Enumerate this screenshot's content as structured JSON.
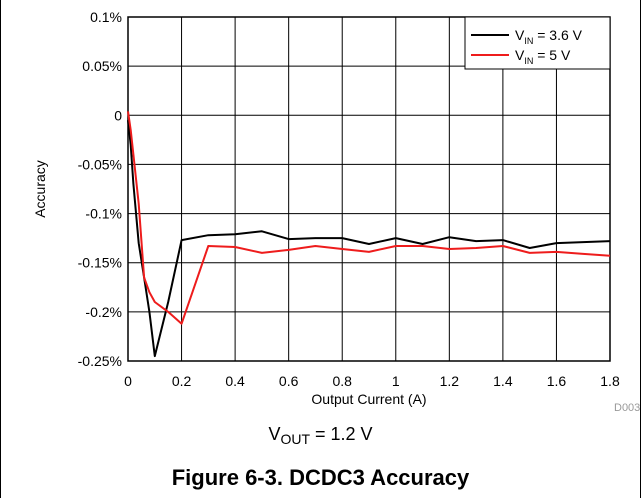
{
  "chart_data": {
    "type": "line",
    "title": "",
    "xlabel": "Output Current (A)",
    "ylabel": "Accuracy",
    "xlim": [
      0,
      1.8
    ],
    "ylim": [
      -0.25,
      0.1
    ],
    "x_ticks": [
      0,
      0.2,
      0.4,
      0.6,
      0.8,
      1.0,
      1.2,
      1.4,
      1.6,
      1.8
    ],
    "x_tick_labels": [
      "0",
      "0.2",
      "0.4",
      "0.6",
      "0.8",
      "1",
      "1.2",
      "1.4",
      "1.6",
      "1.8"
    ],
    "y_ticks": [
      0.1,
      0.05,
      0,
      -0.05,
      -0.1,
      -0.15,
      -0.2,
      -0.25
    ],
    "y_tick_labels": [
      "0.1%",
      "0.05%",
      "0",
      "-0.05%",
      "-0.1%",
      "-0.15%",
      "-0.2%",
      "-0.25%"
    ],
    "grid": true,
    "legend_position": "top-right",
    "series": [
      {
        "name_main": "V",
        "name_sub": "IN",
        "name_rest": " = 3.6 V",
        "color": "#000000",
        "x": [
          0,
          0.01,
          0.02,
          0.04,
          0.06,
          0.08,
          0.1,
          0.15,
          0.2,
          0.3,
          0.4,
          0.5,
          0.6,
          0.7,
          0.8,
          0.9,
          1.0,
          1.1,
          1.2,
          1.3,
          1.4,
          1.5,
          1.6,
          1.7,
          1.8
        ],
        "y": [
          -0.005,
          -0.03,
          -0.07,
          -0.13,
          -0.165,
          -0.2,
          -0.245,
          -0.19,
          -0.127,
          -0.122,
          -0.121,
          -0.118,
          -0.126,
          -0.125,
          -0.125,
          -0.131,
          -0.125,
          -0.131,
          -0.124,
          -0.128,
          -0.127,
          -0.135,
          -0.13,
          -0.129,
          -0.128
        ]
      },
      {
        "name_main": "V",
        "name_sub": "IN",
        "name_rest": " = 5 V",
        "color": "#ee1c1c",
        "x": [
          0,
          0.01,
          0.02,
          0.04,
          0.06,
          0.08,
          0.1,
          0.15,
          0.2,
          0.3,
          0.4,
          0.5,
          0.6,
          0.7,
          0.8,
          0.9,
          1.0,
          1.1,
          1.2,
          1.3,
          1.4,
          1.5,
          1.6,
          1.7,
          1.8
        ],
        "y": [
          0.004,
          -0.015,
          -0.04,
          -0.09,
          -0.165,
          -0.18,
          -0.19,
          -0.2,
          -0.212,
          -0.133,
          -0.134,
          -0.14,
          -0.137,
          -0.133,
          -0.136,
          -0.139,
          -0.133,
          -0.133,
          -0.136,
          -0.135,
          -0.133,
          -0.14,
          -0.139,
          -0.141,
          -0.143
        ]
      }
    ]
  },
  "source_id": "D003",
  "caption": {
    "main": "V",
    "sub": "OUT",
    "rest": " = 1.2 V"
  },
  "figure_title": "Figure 6-3. DCDC3 Accuracy"
}
